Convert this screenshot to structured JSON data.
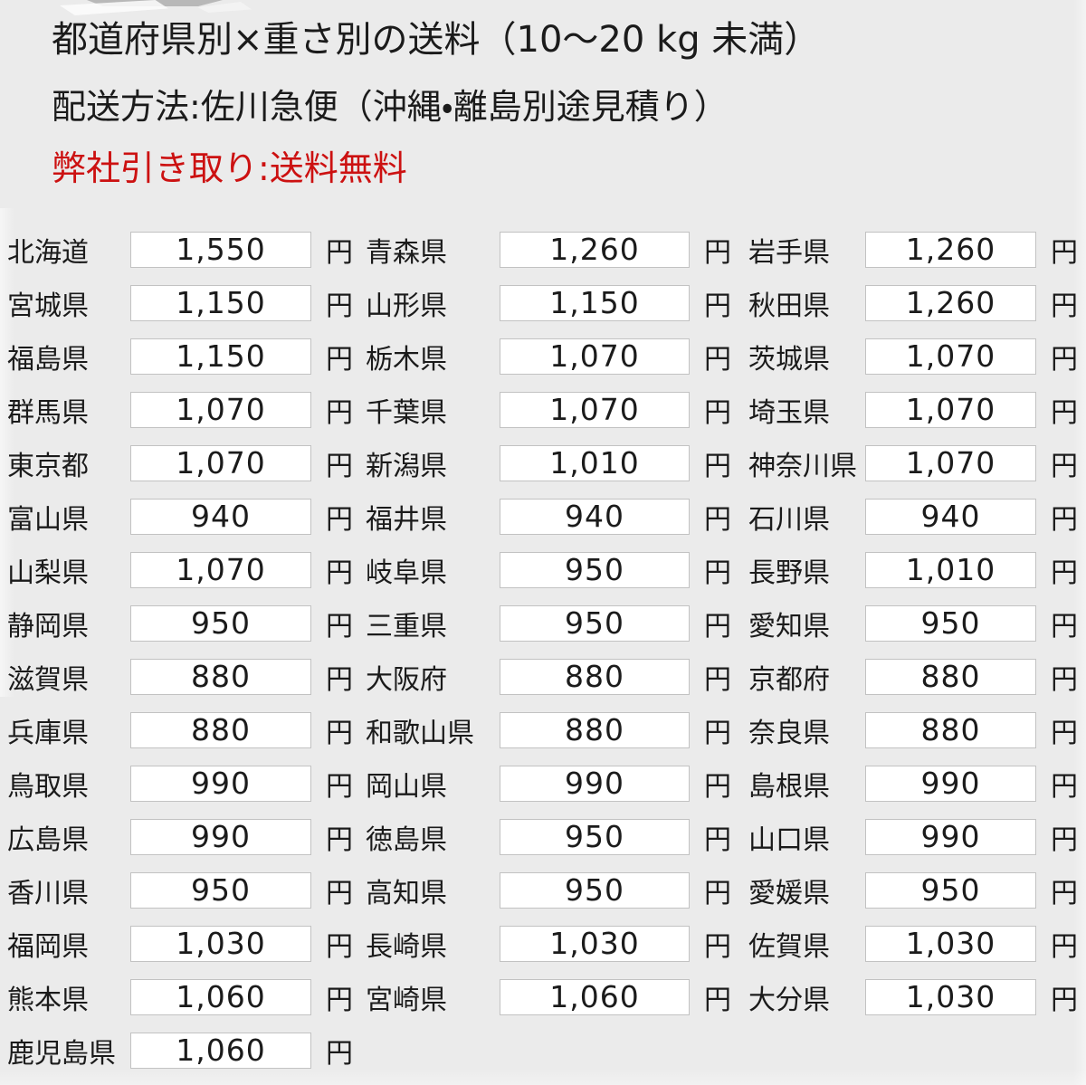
{
  "header": {
    "title": "都道府県別×重さ別の送料（10～20 kg 未満）",
    "shipping_method": "配送方法:佐川急便（沖縄・離島別途見積り）",
    "pickup_note": "弊社引き取り:送料無料"
  },
  "colors": {
    "background": "#ebebeb",
    "text": "#1b1b1b",
    "notice_red": "#cc1111",
    "box_fill": "#ffffff",
    "box_border": "#c2c2c2"
  },
  "table": {
    "currency_label": "円",
    "rows": [
      [
        {
          "prefecture": "北海道",
          "fee": "1,550"
        },
        {
          "prefecture": "青森県",
          "fee": "1,260"
        },
        {
          "prefecture": "岩手県",
          "fee": "1,260"
        }
      ],
      [
        {
          "prefecture": "宮城県",
          "fee": "1,150"
        },
        {
          "prefecture": "山形県",
          "fee": "1,150"
        },
        {
          "prefecture": "秋田県",
          "fee": "1,260"
        }
      ],
      [
        {
          "prefecture": "福島県",
          "fee": "1,150"
        },
        {
          "prefecture": "栃木県",
          "fee": "1,070"
        },
        {
          "prefecture": "茨城県",
          "fee": "1,070"
        }
      ],
      [
        {
          "prefecture": "群馬県",
          "fee": "1,070"
        },
        {
          "prefecture": "千葉県",
          "fee": "1,070"
        },
        {
          "prefecture": "埼玉県",
          "fee": "1,070"
        }
      ],
      [
        {
          "prefecture": "東京都",
          "fee": "1,070"
        },
        {
          "prefecture": "新潟県",
          "fee": "1,010"
        },
        {
          "prefecture": "神奈川県",
          "fee": "1,070"
        }
      ],
      [
        {
          "prefecture": "富山県",
          "fee": "940"
        },
        {
          "prefecture": "福井県",
          "fee": "940"
        },
        {
          "prefecture": "石川県",
          "fee": "940"
        }
      ],
      [
        {
          "prefecture": "山梨県",
          "fee": "1,070"
        },
        {
          "prefecture": "岐阜県",
          "fee": "950"
        },
        {
          "prefecture": "長野県",
          "fee": "1,010"
        }
      ],
      [
        {
          "prefecture": "静岡県",
          "fee": "950"
        },
        {
          "prefecture": "三重県",
          "fee": "950"
        },
        {
          "prefecture": "愛知県",
          "fee": "950"
        }
      ],
      [
        {
          "prefecture": "滋賀県",
          "fee": "880"
        },
        {
          "prefecture": "大阪府",
          "fee": "880"
        },
        {
          "prefecture": "京都府",
          "fee": "880"
        }
      ],
      [
        {
          "prefecture": "兵庫県",
          "fee": "880"
        },
        {
          "prefecture": "和歌山県",
          "fee": "880"
        },
        {
          "prefecture": "奈良県",
          "fee": "880"
        }
      ],
      [
        {
          "prefecture": "鳥取県",
          "fee": "990"
        },
        {
          "prefecture": "岡山県",
          "fee": "990"
        },
        {
          "prefecture": "島根県",
          "fee": "990"
        }
      ],
      [
        {
          "prefecture": "広島県",
          "fee": "990"
        },
        {
          "prefecture": "徳島県",
          "fee": "950"
        },
        {
          "prefecture": "山口県",
          "fee": "990"
        }
      ],
      [
        {
          "prefecture": "香川県",
          "fee": "950"
        },
        {
          "prefecture": "高知県",
          "fee": "950"
        },
        {
          "prefecture": "愛媛県",
          "fee": "950"
        }
      ],
      [
        {
          "prefecture": "福岡県",
          "fee": "1,030"
        },
        {
          "prefecture": "長崎県",
          "fee": "1,030"
        },
        {
          "prefecture": "佐賀県",
          "fee": "1,030"
        }
      ],
      [
        {
          "prefecture": "熊本県",
          "fee": "1,060"
        },
        {
          "prefecture": "宮崎県",
          "fee": "1,060"
        },
        {
          "prefecture": "大分県",
          "fee": "1,030"
        }
      ],
      [
        {
          "prefecture": "鹿児島県",
          "fee": "1,060"
        },
        null,
        null
      ]
    ]
  }
}
